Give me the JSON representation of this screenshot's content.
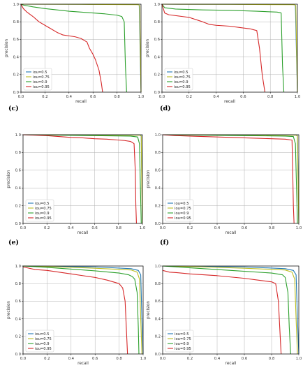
{
  "colors": {
    "iou_0_5": "#1f77b4",
    "iou_0_75": "#bcbd22",
    "iou_0_9": "#2ca02c",
    "iou_0_95": "#d62728",
    "grid": "#b0b0b0"
  },
  "chart_data": [
    {
      "panel": "",
      "type": "line",
      "xlabel": "recall",
      "ylabel": "precision",
      "xlim": [
        0,
        1
      ],
      "ylim": [
        0,
        1
      ],
      "xticks": [
        "0.0",
        "0.2",
        "0.4",
        "0.6",
        "0.8",
        "1.0"
      ],
      "yticks": [
        "0.0",
        "0.2",
        "0.4",
        "0.6",
        "0.8",
        "1.0"
      ],
      "grid": true,
      "legend": "lower-left",
      "series": [
        {
          "name": "iou=0.5",
          "color": "#1f77b4",
          "x": [
            0,
            0.5,
            0.97,
            0.985,
            0.992,
            1.0
          ],
          "y": [
            1.0,
            0.999,
            0.996,
            0.99,
            0.5,
            0
          ]
        },
        {
          "name": "iou=0.75",
          "color": "#bcbd22",
          "x": [
            0,
            0.5,
            0.98,
            0.988,
            0.995,
            1.0
          ],
          "y": [
            1.0,
            0.998,
            0.994,
            0.985,
            0.4,
            0
          ]
        },
        {
          "name": "iou=0.9",
          "color": "#2ca02c",
          "x": [
            0,
            0.02,
            0.1,
            0.2,
            0.3,
            0.4,
            0.5,
            0.6,
            0.7,
            0.8,
            0.84,
            0.86,
            0.87,
            0.88
          ],
          "y": [
            1.0,
            0.99,
            0.97,
            0.95,
            0.935,
            0.92,
            0.91,
            0.9,
            0.89,
            0.875,
            0.86,
            0.8,
            0.3,
            0
          ]
        },
        {
          "name": "iou=0.95",
          "color": "#d62728",
          "x": [
            0,
            0.02,
            0.05,
            0.1,
            0.15,
            0.2,
            0.25,
            0.3,
            0.35,
            0.4,
            0.45,
            0.5,
            0.55,
            0.57,
            0.6,
            0.62,
            0.65,
            0.67,
            0.68
          ],
          "y": [
            1.0,
            0.95,
            0.91,
            0.86,
            0.8,
            0.76,
            0.72,
            0.68,
            0.65,
            0.64,
            0.63,
            0.61,
            0.57,
            0.5,
            0.43,
            0.37,
            0.25,
            0.1,
            0
          ]
        }
      ]
    },
    {
      "panel": "",
      "type": "line",
      "xlabel": "recall",
      "ylabel": "precision",
      "xlim": [
        0,
        1
      ],
      "ylim": [
        0,
        1
      ],
      "xticks": [
        "0.0",
        "0.2",
        "0.4",
        "0.6",
        "0.8",
        "1.0"
      ],
      "yticks": [
        "0.0",
        "0.2",
        "0.4",
        "0.6",
        "0.8",
        "1.0"
      ],
      "grid": true,
      "legend": "lower-left",
      "series": [
        {
          "name": "iou=0.5",
          "color": "#1f77b4",
          "x": [
            0,
            0.5,
            0.97,
            0.985,
            0.992,
            1.0
          ],
          "y": [
            1.0,
            0.999,
            0.996,
            0.99,
            0.5,
            0
          ]
        },
        {
          "name": "iou=0.75",
          "color": "#bcbd22",
          "x": [
            0,
            0.5,
            0.98,
            0.988,
            0.995,
            1.0
          ],
          "y": [
            1.0,
            0.998,
            0.994,
            0.985,
            0.4,
            0
          ]
        },
        {
          "name": "iou=0.9",
          "color": "#2ca02c",
          "x": [
            0,
            0.02,
            0.1,
            0.3,
            0.5,
            0.7,
            0.85,
            0.88,
            0.89,
            0.9
          ],
          "y": [
            1.0,
            0.96,
            0.945,
            0.935,
            0.93,
            0.92,
            0.91,
            0.9,
            0.3,
            0
          ]
        },
        {
          "name": "iou=0.95",
          "color": "#d62728",
          "x": [
            0,
            0.02,
            0.05,
            0.1,
            0.15,
            0.2,
            0.3,
            0.35,
            0.4,
            0.5,
            0.6,
            0.65,
            0.7,
            0.72,
            0.74,
            0.76
          ],
          "y": [
            1.0,
            0.9,
            0.88,
            0.87,
            0.86,
            0.85,
            0.8,
            0.77,
            0.76,
            0.75,
            0.73,
            0.72,
            0.7,
            0.5,
            0.2,
            0
          ]
        }
      ]
    },
    {
      "panel": "(c)",
      "type": "line",
      "xlabel": "recall",
      "ylabel": "precision",
      "xlim": [
        0,
        1
      ],
      "ylim": [
        0,
        1
      ],
      "xticks": [
        "0.0",
        "0.2",
        "0.4",
        "0.6",
        "0.8",
        "1.0"
      ],
      "yticks": [
        "0.0",
        "0.2",
        "0.4",
        "0.6",
        "0.8",
        "1.0"
      ],
      "grid": true,
      "legend": "lower-left",
      "series": [
        {
          "name": "iou=0.5",
          "color": "#1f77b4",
          "x": [
            0,
            0.5,
            0.98,
            0.99,
            0.995,
            1.0
          ],
          "y": [
            1.0,
            0.999,
            0.997,
            0.99,
            0.5,
            0
          ]
        },
        {
          "name": "iou=0.75",
          "color": "#bcbd22",
          "x": [
            0,
            0.5,
            0.98,
            0.99,
            0.995,
            1.0
          ],
          "y": [
            1.0,
            0.998,
            0.995,
            0.985,
            0.4,
            0
          ]
        },
        {
          "name": "iou=0.9",
          "color": "#2ca02c",
          "x": [
            0,
            0.3,
            0.6,
            0.9,
            0.96,
            0.975,
            0.985,
            0.99
          ],
          "y": [
            1.0,
            0.995,
            0.99,
            0.985,
            0.975,
            0.9,
            0.3,
            0
          ]
        },
        {
          "name": "iou=0.95",
          "color": "#d62728",
          "x": [
            0,
            0.1,
            0.2,
            0.3,
            0.4,
            0.5,
            0.6,
            0.7,
            0.8,
            0.85,
            0.9,
            0.93,
            0.94,
            0.945,
            0.95
          ],
          "y": [
            1.0,
            0.995,
            0.99,
            0.98,
            0.97,
            0.965,
            0.955,
            0.95,
            0.94,
            0.935,
            0.925,
            0.9,
            0.6,
            0.2,
            0
          ]
        }
      ]
    },
    {
      "panel": "(d)",
      "type": "line",
      "xlabel": "recall",
      "ylabel": "precision",
      "xlim": [
        0,
        1
      ],
      "ylim": [
        0,
        1
      ],
      "xticks": [
        "0.0",
        "0.2",
        "0.4",
        "0.6",
        "0.8",
        "1.0"
      ],
      "yticks": [
        "0.0",
        "0.2",
        "0.4",
        "0.6",
        "0.8",
        "1.0"
      ],
      "grid": true,
      "legend": "lower-left",
      "series": [
        {
          "name": "iou=0.5",
          "color": "#1f77b4",
          "x": [
            0,
            0.5,
            0.98,
            0.99,
            0.995,
            1.0
          ],
          "y": [
            1.0,
            0.999,
            0.997,
            0.99,
            0.5,
            0
          ]
        },
        {
          "name": "iou=0.75",
          "color": "#bcbd22",
          "x": [
            0,
            0.5,
            0.98,
            0.99,
            0.995,
            1.0
          ],
          "y": [
            1.0,
            0.998,
            0.995,
            0.985,
            0.4,
            0
          ]
        },
        {
          "name": "iou=0.9",
          "color": "#2ca02c",
          "x": [
            0,
            0.3,
            0.6,
            0.9,
            0.96,
            0.975,
            0.985,
            0.99
          ],
          "y": [
            1.0,
            0.995,
            0.99,
            0.985,
            0.98,
            0.9,
            0.3,
            0
          ]
        },
        {
          "name": "iou=0.95",
          "color": "#d62728",
          "x": [
            0,
            0.1,
            0.2,
            0.3,
            0.4,
            0.5,
            0.6,
            0.7,
            0.8,
            0.9,
            0.95,
            0.955,
            0.96,
            0.965
          ],
          "y": [
            1.0,
            0.99,
            0.985,
            0.98,
            0.975,
            0.97,
            0.965,
            0.96,
            0.955,
            0.95,
            0.94,
            0.6,
            0.2,
            0
          ]
        }
      ]
    },
    {
      "panel": "(e)",
      "type": "line",
      "xlabel": "recall",
      "ylabel": "precision",
      "xlim": [
        0,
        1
      ],
      "ylim": [
        0,
        1
      ],
      "xticks": [
        "0.0",
        "0.2",
        "0.4",
        "0.6",
        "0.8",
        "1.0"
      ],
      "yticks": [
        "0.0",
        "0.2",
        "0.4",
        "0.6",
        "0.8",
        "1.0"
      ],
      "grid": true,
      "legend": "lower-left",
      "series": [
        {
          "name": "iou=0.5",
          "color": "#1f77b4",
          "x": [
            0,
            0.3,
            0.6,
            0.9,
            0.96,
            0.98,
            0.99,
            1.0
          ],
          "y": [
            1.0,
            0.995,
            0.99,
            0.97,
            0.95,
            0.9,
            0.4,
            0
          ]
        },
        {
          "name": "iou=0.75",
          "color": "#bcbd22",
          "x": [
            0,
            0.3,
            0.6,
            0.9,
            0.95,
            0.97,
            0.98,
            0.99
          ],
          "y": [
            1.0,
            0.99,
            0.975,
            0.955,
            0.93,
            0.85,
            0.4,
            0
          ]
        },
        {
          "name": "iou=0.9",
          "color": "#2ca02c",
          "x": [
            0,
            0.2,
            0.4,
            0.6,
            0.8,
            0.88,
            0.91,
            0.93,
            0.95,
            0.96,
            0.965
          ],
          "y": [
            1.0,
            0.985,
            0.965,
            0.945,
            0.92,
            0.9,
            0.88,
            0.85,
            0.7,
            0.3,
            0
          ]
        },
        {
          "name": "iou=0.95",
          "color": "#d62728",
          "x": [
            0,
            0.1,
            0.2,
            0.3,
            0.4,
            0.5,
            0.6,
            0.7,
            0.75,
            0.8,
            0.83,
            0.85,
            0.86,
            0.87
          ],
          "y": [
            0.99,
            0.96,
            0.95,
            0.93,
            0.91,
            0.89,
            0.87,
            0.84,
            0.82,
            0.8,
            0.75,
            0.6,
            0.3,
            0
          ]
        }
      ]
    },
    {
      "panel": "(f)",
      "type": "line",
      "xlabel": "recall",
      "ylabel": "precision",
      "xlim": [
        0,
        1
      ],
      "ylim": [
        0,
        1
      ],
      "xticks": [
        "0.0",
        "0.2",
        "0.4",
        "0.6",
        "0.8",
        "1.0"
      ],
      "yticks": [
        "0.0",
        "0.2",
        "0.4",
        "0.6",
        "0.8",
        "1.0"
      ],
      "grid": true,
      "legend": "lower-left",
      "series": [
        {
          "name": "iou=0.5",
          "color": "#1f77b4",
          "x": [
            0,
            0.3,
            0.6,
            0.9,
            0.96,
            0.98,
            0.99,
            1.0
          ],
          "y": [
            1.0,
            0.995,
            0.99,
            0.97,
            0.95,
            0.9,
            0.4,
            0
          ]
        },
        {
          "name": "iou=0.75",
          "color": "#bcbd22",
          "x": [
            0,
            0.3,
            0.6,
            0.9,
            0.95,
            0.97,
            0.98,
            0.99
          ],
          "y": [
            1.0,
            0.99,
            0.975,
            0.955,
            0.93,
            0.85,
            0.4,
            0
          ]
        },
        {
          "name": "iou=0.9",
          "color": "#2ca02c",
          "x": [
            0,
            0.2,
            0.4,
            0.6,
            0.8,
            0.88,
            0.9,
            0.92,
            0.93,
            0.94
          ],
          "y": [
            1.0,
            0.98,
            0.96,
            0.94,
            0.92,
            0.9,
            0.87,
            0.7,
            0.3,
            0
          ]
        },
        {
          "name": "iou=0.95",
          "color": "#d62728",
          "x": [
            0,
            0.05,
            0.1,
            0.2,
            0.3,
            0.4,
            0.5,
            0.6,
            0.7,
            0.8,
            0.83,
            0.85,
            0.86,
            0.87
          ],
          "y": [
            0.95,
            0.93,
            0.925,
            0.91,
            0.9,
            0.89,
            0.875,
            0.86,
            0.84,
            0.82,
            0.8,
            0.6,
            0.3,
            0
          ]
        }
      ]
    }
  ]
}
